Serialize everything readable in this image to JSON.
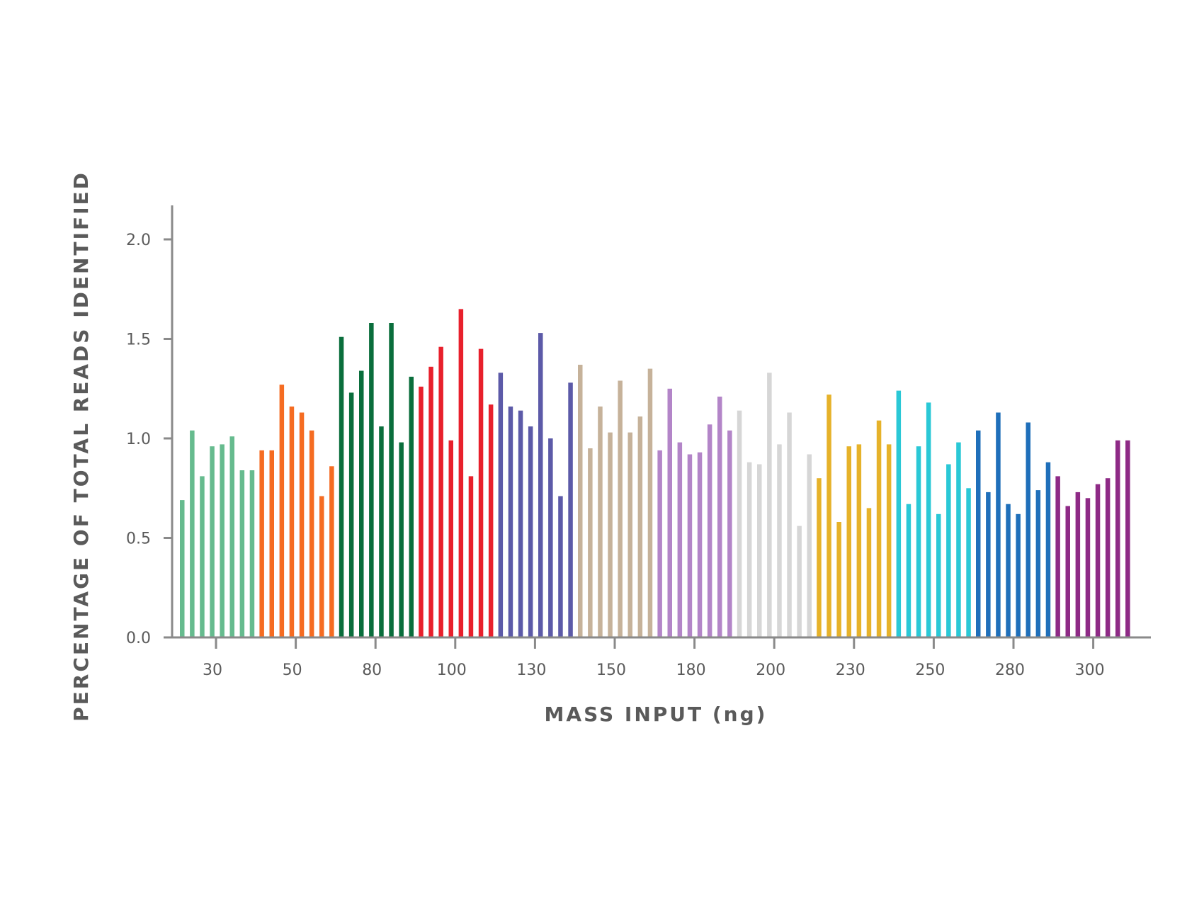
{
  "chart_data": {
    "type": "bar",
    "xlabel": "MASS INPUT (ng)",
    "ylabel": "PERCENTAGE OF TOTAL READS IDENTIFIED",
    "ylim": [
      0,
      2.2
    ],
    "yticks": [
      "0.0",
      "0.5",
      "1.0",
      "1.5",
      "2.0"
    ],
    "xticks": [
      "30",
      "50",
      "80",
      "100",
      "130",
      "150",
      "180",
      "200",
      "230",
      "250",
      "280",
      "300"
    ],
    "grid": false,
    "legend": "none",
    "series": [
      {
        "color": "#66bb8e",
        "values": [
          0.69,
          1.04,
          0.81,
          0.96,
          0.97,
          1.01,
          0.84,
          0.84
        ]
      },
      {
        "color": "#f56c22",
        "values": [
          0.94,
          0.94,
          1.27,
          1.16,
          1.13,
          1.04,
          0.71,
          0.86
        ]
      },
      {
        "color": "#0a6e3c",
        "values": [
          1.51,
          1.23,
          1.34,
          1.58,
          1.06,
          1.58,
          0.98,
          1.31
        ]
      },
      {
        "color": "#e8202c",
        "values": [
          1.26,
          1.36,
          1.46,
          0.99,
          1.65,
          0.81,
          1.45,
          1.17
        ]
      },
      {
        "color": "#5c5aa8",
        "values": [
          1.33,
          1.16,
          1.14,
          1.06,
          1.53,
          1.0,
          0.71,
          1.28
        ]
      },
      {
        "color": "#c6b29a",
        "values": [
          1.37,
          0.95,
          1.16,
          1.03,
          1.29,
          1.03,
          1.11,
          1.35
        ]
      },
      {
        "color": "#b385c8",
        "values": [
          0.94,
          1.25,
          0.98,
          0.92,
          0.93,
          1.07,
          1.21,
          1.04
        ]
      },
      {
        "color": "#d6d6d6",
        "values": [
          1.14,
          0.88,
          0.87,
          1.33,
          0.97,
          1.13,
          0.56,
          0.92
        ]
      },
      {
        "color": "#e6b22a",
        "values": [
          0.8,
          1.22,
          0.58,
          0.96,
          0.97,
          0.65,
          1.09,
          0.97
        ]
      },
      {
        "color": "#2ac8d6",
        "values": [
          1.24,
          0.67,
          0.96,
          1.18,
          0.62,
          0.87,
          0.98,
          0.75
        ]
      },
      {
        "color": "#1f6fba",
        "values": [
          1.04,
          0.73,
          1.13,
          0.67,
          0.62,
          1.08,
          0.74,
          0.88
        ]
      },
      {
        "color": "#8e2a86",
        "values": [
          0.81,
          0.66,
          0.73,
          0.7,
          0.77,
          0.8,
          0.99,
          0.99
        ]
      }
    ]
  }
}
